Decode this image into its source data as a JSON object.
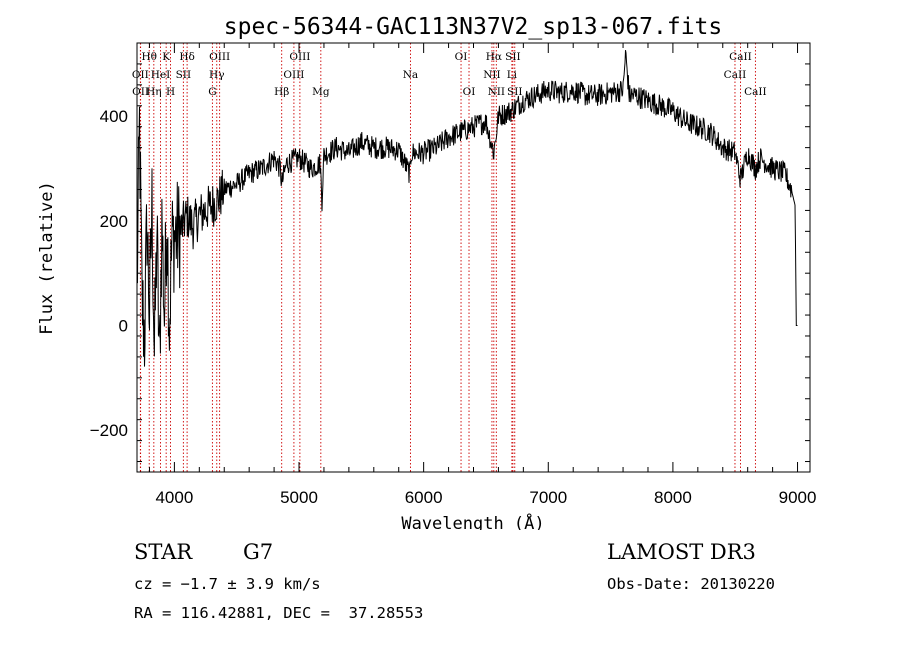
{
  "chart_data": {
    "type": "line",
    "title": "spec-56344-GAC113N37V2_sp13-067.fits",
    "xlabel": "Wavelength (Å)",
    "ylabel": "Flux (relative)",
    "xlim": [
      3700,
      9100
    ],
    "ylim": [
      -280,
      540
    ],
    "x_ticks": [
      4000,
      5000,
      6000,
      7000,
      8000,
      9000
    ],
    "y_ticks": [
      -200,
      0,
      200,
      400
    ],
    "y_tick_labels": [
      "−200",
      "0",
      "200",
      "400"
    ],
    "series": [
      {
        "name": "flux",
        "x": [
          3700,
          3720,
          3740,
          3760,
          3780,
          3800,
          3820,
          3840,
          3860,
          3880,
          3900,
          3920,
          3940,
          3960,
          3980,
          4000,
          4050,
          4100,
          4150,
          4200,
          4250,
          4300,
          4350,
          4400,
          4450,
          4500,
          4600,
          4700,
          4800,
          4850,
          4861,
          4900,
          5000,
          5100,
          5170,
          5184,
          5200,
          5300,
          5400,
          5500,
          5600,
          5700,
          5800,
          5890,
          5900,
          6000,
          6100,
          6200,
          6300,
          6400,
          6500,
          6563,
          6600,
          6700,
          6800,
          6900,
          7000,
          7100,
          7200,
          7300,
          7400,
          7500,
          7600,
          7620,
          7650,
          7700,
          7800,
          7900,
          8000,
          8100,
          8200,
          8300,
          8400,
          8500,
          8542,
          8600,
          8662,
          8700,
          8800,
          8900,
          8950,
          8980,
          8990,
          9000
        ],
        "values": [
          60,
          380,
          50,
          -20,
          200,
          20,
          230,
          -60,
          180,
          -80,
          200,
          20,
          220,
          0,
          160,
          170,
          180,
          210,
          190,
          210,
          220,
          230,
          240,
          260,
          265,
          270,
          290,
          300,
          320,
          300,
          270,
          310,
          320,
          300,
          310,
          240,
          325,
          340,
          330,
          350,
          340,
          340,
          335,
          290,
          330,
          330,
          340,
          360,
          370,
          380,
          390,
          330,
          400,
          410,
          430,
          440,
          450,
          445,
          450,
          440,
          440,
          445,
          450,
          520,
          440,
          440,
          430,
          420,
          410,
          390,
          380,
          370,
          340,
          330,
          280,
          330,
          300,
          320,
          300,
          290,
          260,
          230,
          0,
          0
        ]
      }
    ],
    "line_markers": [
      {
        "name": "OII",
        "wavelength": 3727,
        "row": 1
      },
      {
        "name": "OII",
        "wavelength": 3729,
        "row": 2
      },
      {
        "name": "Hθ",
        "wavelength": 3798,
        "row": 0
      },
      {
        "name": "Hη",
        "wavelength": 3835,
        "row": 2
      },
      {
        "name": "HeI",
        "wavelength": 3889,
        "row": 1
      },
      {
        "name": "K",
        "wavelength": 3934,
        "row": 0
      },
      {
        "name": "H",
        "wavelength": 3969,
        "row": 2
      },
      {
        "name": "SII",
        "wavelength": 4072,
        "row": 1
      },
      {
        "name": "Hδ",
        "wavelength": 4102,
        "row": 0
      },
      {
        "name": "G",
        "wavelength": 4305,
        "row": 2
      },
      {
        "name": "Hγ",
        "wavelength": 4340,
        "row": 1
      },
      {
        "name": "OIII",
        "wavelength": 4363,
        "row": 0
      },
      {
        "name": "Hβ",
        "wavelength": 4861,
        "row": 2
      },
      {
        "name": "OIII",
        "wavelength": 4959,
        "row": 1
      },
      {
        "name": "OIII",
        "wavelength": 5007,
        "row": 0
      },
      {
        "name": "Mg",
        "wavelength": 5175,
        "row": 2
      },
      {
        "name": "Na",
        "wavelength": 5894,
        "row": 1
      },
      {
        "name": "OI",
        "wavelength": 6300,
        "row": 0
      },
      {
        "name": "OI",
        "wavelength": 6364,
        "row": 2
      },
      {
        "name": "NII",
        "wavelength": 6548,
        "row": 1
      },
      {
        "name": "Hα",
        "wavelength": 6563,
        "row": 0
      },
      {
        "name": "NII",
        "wavelength": 6583,
        "row": 2
      },
      {
        "name": "SII",
        "wavelength": 6716,
        "row": 0
      },
      {
        "name": "Li",
        "wavelength": 6708,
        "row": 1
      },
      {
        "name": "SII",
        "wavelength": 6731,
        "row": 2
      },
      {
        "name": "CaII",
        "wavelength": 8498,
        "row": 1
      },
      {
        "name": "CaII",
        "wavelength": 8542,
        "row": 0
      },
      {
        "name": "CaII",
        "wavelength": 8662,
        "row": 2
      }
    ],
    "marker_color": "#cc0000"
  },
  "info": {
    "object_class": "STAR",
    "subclass": "G7",
    "survey": "LAMOST DR3",
    "cz": "cz = −1.7 ± 3.9 km/s",
    "obs_date": "Obs-Date: 20130220",
    "coords": "RA = 116.42881, DEC =  37.28553"
  }
}
